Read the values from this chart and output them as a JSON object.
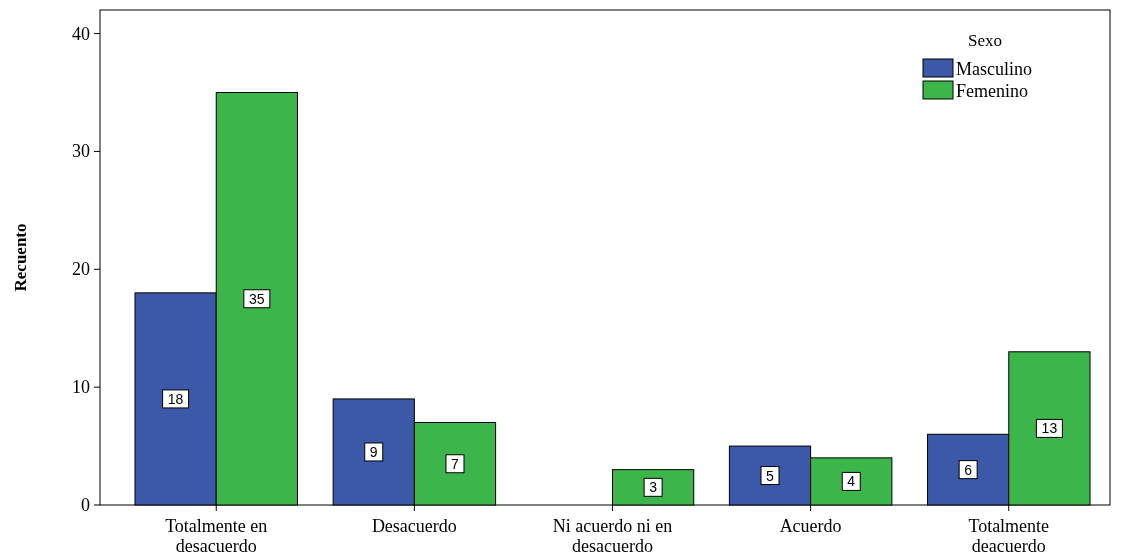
{
  "chart_data": {
    "type": "bar",
    "ylabel": "Recuento",
    "legend_title": "Sexo",
    "categories": [
      "Totalmente en desacuerdo",
      "Desacuerdo",
      "Ni acuerdo ni en desacuerdo",
      "Acuerdo",
      "Totalmente deacuerdo"
    ],
    "series": [
      {
        "name": "Masculino",
        "color": "#3c58a8",
        "values": [
          18,
          9,
          null,
          5,
          6
        ]
      },
      {
        "name": "Femenino",
        "color": "#3cb64a",
        "values": [
          35,
          7,
          3,
          4,
          13
        ]
      }
    ],
    "ylim": [
      0,
      42
    ],
    "yticks": [
      0,
      10,
      20,
      30,
      40
    ],
    "data_labels": true,
    "legend": "top right",
    "grid": false
  }
}
